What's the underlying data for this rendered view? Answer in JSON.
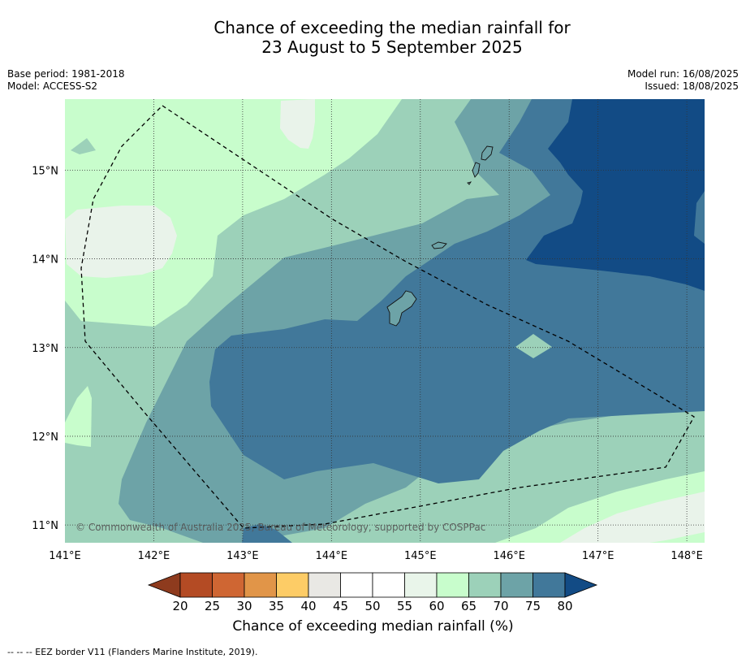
{
  "title": {
    "line1": "Chance of exceeding the median rainfall for",
    "line2": "23 August to 5 September 2025"
  },
  "meta": {
    "base_period": "Base period: 1981-2018",
    "model": "Model: ACCESS-S2",
    "model_run": "Model run: 16/08/2025",
    "issued": "Issued: 18/08/2025"
  },
  "map": {
    "lon_ticks": [
      "141°E",
      "142°E",
      "143°E",
      "144°E",
      "145°E",
      "146°E",
      "147°E",
      "148°E"
    ],
    "lat_ticks": [
      "15°N",
      "14°N",
      "13°N",
      "12°N",
      "11°N"
    ],
    "lon_range": [
      141,
      148.2
    ],
    "lat_range": [
      10.8,
      15.8
    ],
    "gridlines": "dotted",
    "copyright": "© Commonwealth of Australia 2025, Bureau of Meteorology, supported by COSPPac"
  },
  "colorbar": {
    "ticks": [
      "20",
      "25",
      "30",
      "35",
      "40",
      "45",
      "50",
      "55",
      "60",
      "65",
      "70",
      "75",
      "80"
    ],
    "colors": [
      "#8e3b1e",
      "#b44b24",
      "#cf6633",
      "#e19548",
      "#fdcc66",
      "#e9e8e4",
      "#ffffff",
      "#ffffff",
      "#e9f5ea",
      "#c8fdcc",
      "#9cd1b9",
      "#6da3a7",
      "#41789a",
      "#124b85"
    ],
    "label": "Chance of exceeding median rainfall (%)"
  },
  "footnote": "-- -- -- EEZ border V11 (Flanders Marine Institute, 2019).",
  "colors": {
    "p40_45": "#e9f3ea",
    "p60_65": "#c8fdcc",
    "p65_70": "#9cd1b9",
    "p70_75": "#6da3a7",
    "p75_80": "#41789a",
    "p80": "#124b85"
  }
}
